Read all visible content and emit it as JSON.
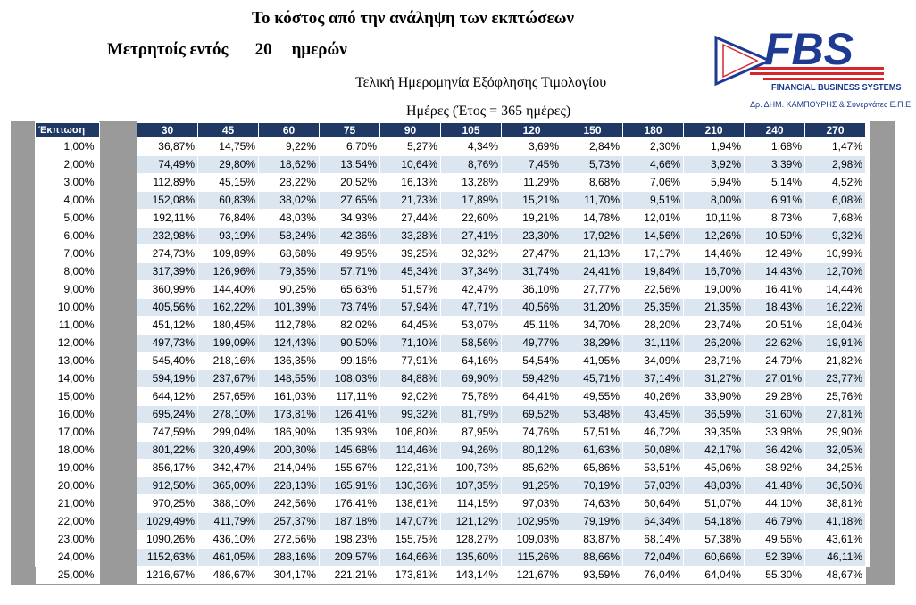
{
  "header": {
    "title": "Το κόστος από την ανάληψη των εκπτώσεων",
    "subtitle_label": "Μετρητοίς εντός",
    "subtitle_days": "20",
    "subtitle_unit": "ημερών",
    "final_date_label": "Τελική Ημερομηνία Εξόφλησης Τιμολογίου",
    "days_caption": "Ημέρες (Έτος = 365 ημέρες)"
  },
  "logo": {
    "letters": "FBS",
    "brand_name": "FINANCIAL BUSINESS SYSTEMS",
    "brand_sub": "Δρ. ΔΗΜ. ΚΑΜΠΟΥΡΗΣ & Συνεργάτες Ε.Π.Ε.",
    "colors": {
      "blue": "#1f3a93",
      "red": "#d7262b"
    }
  },
  "table": {
    "discount_header": "Έκπτωση",
    "day_headers": [
      "30",
      "45",
      "60",
      "75",
      "90",
      "105",
      "120",
      "150",
      "180",
      "210",
      "240",
      "270"
    ],
    "rows": [
      {
        "discount": "1,00%",
        "values": [
          "36,87%",
          "14,75%",
          "9,22%",
          "6,70%",
          "5,27%",
          "4,34%",
          "3,69%",
          "2,84%",
          "2,30%",
          "1,94%",
          "1,68%",
          "1,47%"
        ]
      },
      {
        "discount": "2,00%",
        "values": [
          "74,49%",
          "29,80%",
          "18,62%",
          "13,54%",
          "10,64%",
          "8,76%",
          "7,45%",
          "5,73%",
          "4,66%",
          "3,92%",
          "3,39%",
          "2,98%"
        ]
      },
      {
        "discount": "3,00%",
        "values": [
          "112,89%",
          "45,15%",
          "28,22%",
          "20,52%",
          "16,13%",
          "13,28%",
          "11,29%",
          "8,68%",
          "7,06%",
          "5,94%",
          "5,14%",
          "4,52%"
        ]
      },
      {
        "discount": "4,00%",
        "values": [
          "152,08%",
          "60,83%",
          "38,02%",
          "27,65%",
          "21,73%",
          "17,89%",
          "15,21%",
          "11,70%",
          "9,51%",
          "8,00%",
          "6,91%",
          "6,08%"
        ]
      },
      {
        "discount": "5,00%",
        "values": [
          "192,11%",
          "76,84%",
          "48,03%",
          "34,93%",
          "27,44%",
          "22,60%",
          "19,21%",
          "14,78%",
          "12,01%",
          "10,11%",
          "8,73%",
          "7,68%"
        ]
      },
      {
        "discount": "6,00%",
        "values": [
          "232,98%",
          "93,19%",
          "58,24%",
          "42,36%",
          "33,28%",
          "27,41%",
          "23,30%",
          "17,92%",
          "14,56%",
          "12,26%",
          "10,59%",
          "9,32%"
        ]
      },
      {
        "discount": "7,00%",
        "values": [
          "274,73%",
          "109,89%",
          "68,68%",
          "49,95%",
          "39,25%",
          "32,32%",
          "27,47%",
          "21,13%",
          "17,17%",
          "14,46%",
          "12,49%",
          "10,99%"
        ]
      },
      {
        "discount": "8,00%",
        "values": [
          "317,39%",
          "126,96%",
          "79,35%",
          "57,71%",
          "45,34%",
          "37,34%",
          "31,74%",
          "24,41%",
          "19,84%",
          "16,70%",
          "14,43%",
          "12,70%"
        ]
      },
      {
        "discount": "9,00%",
        "values": [
          "360,99%",
          "144,40%",
          "90,25%",
          "65,63%",
          "51,57%",
          "42,47%",
          "36,10%",
          "27,77%",
          "22,56%",
          "19,00%",
          "16,41%",
          "14,44%"
        ]
      },
      {
        "discount": "10,00%",
        "values": [
          "405,56%",
          "162,22%",
          "101,39%",
          "73,74%",
          "57,94%",
          "47,71%",
          "40,56%",
          "31,20%",
          "25,35%",
          "21,35%",
          "18,43%",
          "16,22%"
        ]
      },
      {
        "discount": "11,00%",
        "values": [
          "451,12%",
          "180,45%",
          "112,78%",
          "82,02%",
          "64,45%",
          "53,07%",
          "45,11%",
          "34,70%",
          "28,20%",
          "23,74%",
          "20,51%",
          "18,04%"
        ]
      },
      {
        "discount": "12,00%",
        "values": [
          "497,73%",
          "199,09%",
          "124,43%",
          "90,50%",
          "71,10%",
          "58,56%",
          "49,77%",
          "38,29%",
          "31,11%",
          "26,20%",
          "22,62%",
          "19,91%"
        ]
      },
      {
        "discount": "13,00%",
        "values": [
          "545,40%",
          "218,16%",
          "136,35%",
          "99,16%",
          "77,91%",
          "64,16%",
          "54,54%",
          "41,95%",
          "34,09%",
          "28,71%",
          "24,79%",
          "21,82%"
        ]
      },
      {
        "discount": "14,00%",
        "values": [
          "594,19%",
          "237,67%",
          "148,55%",
          "108,03%",
          "84,88%",
          "69,90%",
          "59,42%",
          "45,71%",
          "37,14%",
          "31,27%",
          "27,01%",
          "23,77%"
        ]
      },
      {
        "discount": "15,00%",
        "values": [
          "644,12%",
          "257,65%",
          "161,03%",
          "117,11%",
          "92,02%",
          "75,78%",
          "64,41%",
          "49,55%",
          "40,26%",
          "33,90%",
          "29,28%",
          "25,76%"
        ]
      },
      {
        "discount": "16,00%",
        "values": [
          "695,24%",
          "278,10%",
          "173,81%",
          "126,41%",
          "99,32%",
          "81,79%",
          "69,52%",
          "53,48%",
          "43,45%",
          "36,59%",
          "31,60%",
          "27,81%"
        ]
      },
      {
        "discount": "17,00%",
        "values": [
          "747,59%",
          "299,04%",
          "186,90%",
          "135,93%",
          "106,80%",
          "87,95%",
          "74,76%",
          "57,51%",
          "46,72%",
          "39,35%",
          "33,98%",
          "29,90%"
        ]
      },
      {
        "discount": "18,00%",
        "values": [
          "801,22%",
          "320,49%",
          "200,30%",
          "145,68%",
          "114,46%",
          "94,26%",
          "80,12%",
          "61,63%",
          "50,08%",
          "42,17%",
          "36,42%",
          "32,05%"
        ]
      },
      {
        "discount": "19,00%",
        "values": [
          "856,17%",
          "342,47%",
          "214,04%",
          "155,67%",
          "122,31%",
          "100,73%",
          "85,62%",
          "65,86%",
          "53,51%",
          "45,06%",
          "38,92%",
          "34,25%"
        ]
      },
      {
        "discount": "20,00%",
        "values": [
          "912,50%",
          "365,00%",
          "228,13%",
          "165,91%",
          "130,36%",
          "107,35%",
          "91,25%",
          "70,19%",
          "57,03%",
          "48,03%",
          "41,48%",
          "36,50%"
        ]
      },
      {
        "discount": "21,00%",
        "values": [
          "970,25%",
          "388,10%",
          "242,56%",
          "176,41%",
          "138,61%",
          "114,15%",
          "97,03%",
          "74,63%",
          "60,64%",
          "51,07%",
          "44,10%",
          "38,81%"
        ]
      },
      {
        "discount": "22,00%",
        "values": [
          "1029,49%",
          "411,79%",
          "257,37%",
          "187,18%",
          "147,07%",
          "121,12%",
          "102,95%",
          "79,19%",
          "64,34%",
          "54,18%",
          "46,79%",
          "41,18%"
        ]
      },
      {
        "discount": "23,00%",
        "values": [
          "1090,26%",
          "436,10%",
          "272,56%",
          "198,23%",
          "155,75%",
          "128,27%",
          "109,03%",
          "83,87%",
          "68,14%",
          "57,38%",
          "49,56%",
          "43,61%"
        ]
      },
      {
        "discount": "24,00%",
        "values": [
          "1152,63%",
          "461,05%",
          "288,16%",
          "209,57%",
          "164,66%",
          "135,60%",
          "115,26%",
          "88,66%",
          "72,04%",
          "60,66%",
          "52,39%",
          "46,11%"
        ]
      },
      {
        "discount": "25,00%",
        "values": [
          "1216,67%",
          "486,67%",
          "304,17%",
          "221,21%",
          "173,81%",
          "143,14%",
          "121,67%",
          "93,59%",
          "76,04%",
          "64,04%",
          "55,30%",
          "48,67%"
        ]
      }
    ]
  }
}
